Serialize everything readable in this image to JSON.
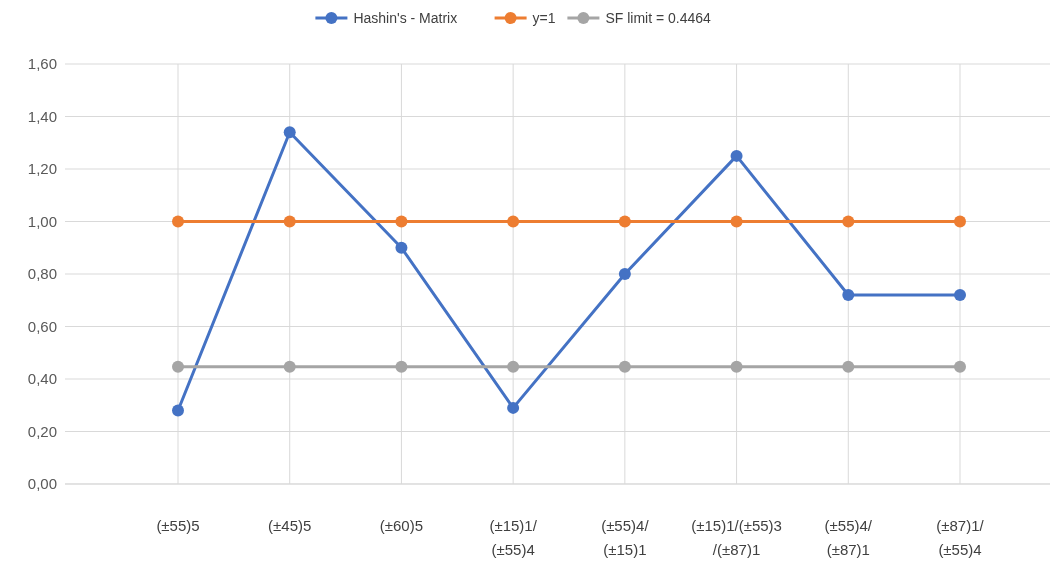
{
  "chart_data": {
    "type": "line",
    "categories": [
      "(±55)5",
      "(±45)5",
      "(±60)5",
      "(±15)1/\n(±55)4",
      "(±55)4/\n(±15)1",
      "(±15)1/(±55)3\n/(±87)1",
      "(±55)4/\n(±87)1",
      "(±87)1/\n(±55)4"
    ],
    "series": [
      {
        "name": "Hashin's - Matrix",
        "color": "#4472c4",
        "values": [
          0.28,
          1.34,
          0.9,
          0.29,
          0.8,
          1.25,
          0.72,
          0.72
        ]
      },
      {
        "name": "y=1",
        "color": "#ed7d31",
        "values": [
          1,
          1,
          1,
          1,
          1,
          1,
          1,
          1
        ]
      },
      {
        "name": "SF limit = 0.4464",
        "color": "#a5a5a5",
        "values": [
          0.4464,
          0.4464,
          0.4464,
          0.4464,
          0.4464,
          0.4464,
          0.4464,
          0.4464
        ]
      }
    ],
    "ylim": [
      0,
      1.6
    ],
    "yticks": [
      {
        "value": 0,
        "label": "0,00"
      },
      {
        "value": 0.2,
        "label": "0,20"
      },
      {
        "value": 0.4,
        "label": "0,40"
      },
      {
        "value": 0.6,
        "label": "0,60"
      },
      {
        "value": 0.8,
        "label": "0,80"
      },
      {
        "value": 1,
        "label": "1,00"
      },
      {
        "value": 1.2,
        "label": "1,20"
      },
      {
        "value": 1.4,
        "label": "1,40"
      },
      {
        "value": 1.6,
        "label": "1,60"
      }
    ],
    "grid": true,
    "legend": "top",
    "marker": "circle",
    "line_style": "solid"
  }
}
